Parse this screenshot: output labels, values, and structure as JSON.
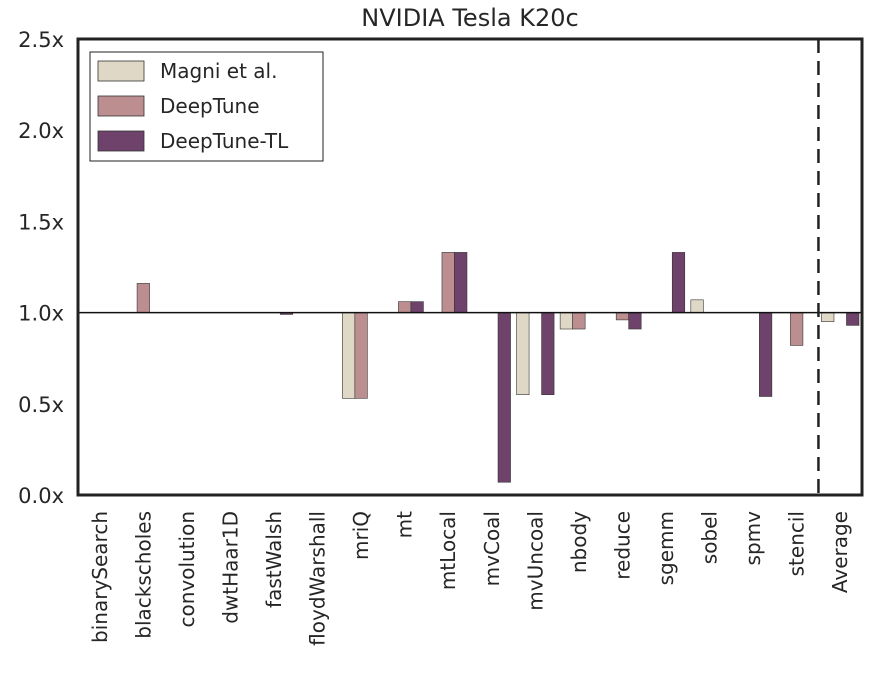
{
  "chart_data": {
    "type": "bar",
    "title": "NVIDIA Tesla K20c",
    "xlabel": "",
    "ylabel": "",
    "ylim": [
      0,
      2.5
    ],
    "baseline": 1.0,
    "yticks": [
      0.0,
      0.5,
      1.0,
      1.5,
      2.0,
      2.5
    ],
    "ytick_labels": [
      "0.0x",
      "0.5x",
      "1.0x",
      "1.5x",
      "2.0x",
      "2.5x"
    ],
    "grid": false,
    "legend_position": "top-left",
    "categories": [
      "binarySearch",
      "blackscholes",
      "convolution",
      "dwtHaar1D",
      "fastWalsh",
      "floydWarshall",
      "mriQ",
      "mt",
      "mtLocal",
      "mvCoal",
      "mvUncoal",
      "nbody",
      "reduce",
      "sgemm",
      "sobel",
      "spmv",
      "stencil",
      "Average"
    ],
    "series": [
      {
        "name": "Magni et al.",
        "color": "#e0d8c6",
        "values": [
          1.0,
          1.0,
          1.0,
          1.0,
          1.0,
          1.0,
          0.53,
          1.0,
          1.0,
          1.0,
          0.55,
          0.91,
          1.0,
          1.0,
          1.07,
          1.0,
          1.0,
          0.95
        ]
      },
      {
        "name": "DeepTune",
        "color": "#bd8e90",
        "values": [
          1.0,
          1.16,
          1.0,
          1.0,
          1.0,
          1.0,
          0.53,
          1.06,
          1.33,
          1.0,
          1.0,
          0.91,
          0.96,
          1.0,
          1.0,
          1.0,
          0.82,
          1.0
        ]
      },
      {
        "name": "DeepTune-TL",
        "color": "#6e426b",
        "values": [
          1.0,
          1.0,
          1.0,
          1.0,
          0.99,
          1.0,
          1.0,
          1.06,
          1.33,
          0.07,
          0.55,
          1.0,
          0.91,
          1.33,
          1.0,
          0.54,
          1.0,
          0.93
        ]
      }
    ],
    "separator_before": "Average"
  }
}
